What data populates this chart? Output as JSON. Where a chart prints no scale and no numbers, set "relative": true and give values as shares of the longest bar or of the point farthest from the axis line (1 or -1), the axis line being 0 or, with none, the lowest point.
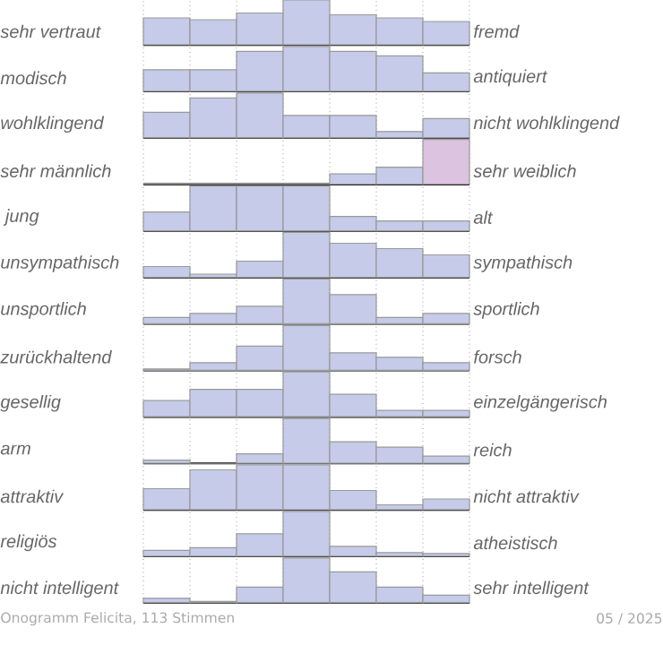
{
  "chart_data": [
    {
      "type": "bar",
      "categories": [
        null,
        null,
        null,
        null,
        null,
        null,
        null
      ],
      "values": [
        0.6,
        0.56,
        0.71,
        1,
        0.67,
        0.6,
        0.52
      ],
      "relative": true,
      "color": "#c5cbe8",
      "grid": "x",
      "ylabel": "sehr vertraut",
      "y2label": "fremd"
    },
    {
      "type": "bar",
      "categories": [
        null,
        null,
        null,
        null,
        null,
        null,
        null
      ],
      "values": [
        0.48,
        0.48,
        0.89,
        1,
        0.89,
        0.79,
        0.41
      ],
      "relative": true,
      "color": "#c5cbe8",
      "grid": "x",
      "ylabel": "modisch",
      "y2label": "antiquiert"
    },
    {
      "type": "bar",
      "categories": [
        null,
        null,
        null,
        null,
        null,
        null,
        null
      ],
      "values": [
        0.57,
        0.89,
        1,
        0.5,
        0.5,
        0.14,
        0.43
      ],
      "relative": true,
      "color": "#c5cbe8",
      "grid": "x",
      "ylabel": "wohlklingend",
      "y2label": "nicht wohlklingend"
    },
    {
      "type": "bar",
      "categories": [
        null,
        null,
        null,
        null,
        null,
        null,
        null
      ],
      "values": [
        0,
        0,
        0,
        0,
        0.23,
        0.38,
        1
      ],
      "relative": true,
      "colors": [
        "#c5cbe8",
        "#c5cbe8",
        "#c5cbe8",
        "#c5cbe8",
        "#c5cbe8",
        "#c5cbe8",
        "#dcc3e0"
      ],
      "grid": "x",
      "ylabel": "sehr männlich",
      "y2label": "sehr weiblich"
    },
    {
      "type": "bar",
      "categories": [
        null,
        null,
        null,
        null,
        null,
        null,
        null
      ],
      "values": [
        0.42,
        1,
        1,
        1,
        0.32,
        0.22,
        0.22
      ],
      "relative": true,
      "color": "#c5cbe8",
      "grid": "x",
      "ylabel": " jung",
      "y2label": "alt"
    },
    {
      "type": "bar",
      "categories": [
        null,
        null,
        null,
        null,
        null,
        null,
        null
      ],
      "values": [
        0.24,
        0.07,
        0.36,
        1,
        0.76,
        0.64,
        0.5
      ],
      "relative": true,
      "color": "#c5cbe8",
      "grid": "x",
      "ylabel": "unsympathisch",
      "y2label": "sympathisch"
    },
    {
      "type": "bar",
      "categories": [
        null,
        null,
        null,
        null,
        null,
        null,
        null
      ],
      "values": [
        0.14,
        0.23,
        0.39,
        1,
        0.65,
        0.14,
        0.23
      ],
      "relative": true,
      "color": "#c5cbe8",
      "grid": "x",
      "ylabel": "unsportlich",
      "y2label": "sportlich"
    },
    {
      "type": "bar",
      "categories": [
        null,
        null,
        null,
        null,
        null,
        null,
        null
      ],
      "values": [
        0.03,
        0.17,
        0.54,
        1,
        0.39,
        0.29,
        0.17
      ],
      "relative": true,
      "color": "#c5cbe8",
      "grid": "x",
      "ylabel": "zurückhaltend",
      "y2label": "forsch"
    },
    {
      "type": "bar",
      "categories": [
        null,
        null,
        null,
        null,
        null,
        null,
        null
      ],
      "values": [
        0.36,
        0.61,
        0.61,
        1,
        0.5,
        0.14,
        0.14
      ],
      "relative": true,
      "color": "#c5cbe8",
      "grid": "x",
      "ylabel": "gesellig",
      "y2label": "einzelgängerisch"
    },
    {
      "type": "bar",
      "categories": [
        null,
        null,
        null,
        null,
        null,
        null,
        null
      ],
      "values": [
        0.07,
        0,
        0.21,
        1,
        0.48,
        0.36,
        0.16
      ],
      "relative": true,
      "color": "#c5cbe8",
      "grid": "x",
      "ylabel": "arm",
      "y2label": "reich"
    },
    {
      "type": "bar",
      "categories": [
        null,
        null,
        null,
        null,
        null,
        null,
        null
      ],
      "values": [
        0.47,
        0.89,
        1,
        1,
        0.43,
        0.11,
        0.24
      ],
      "relative": true,
      "color": "#c5cbe8",
      "grid": "x",
      "ylabel": "attraktiv",
      "y2label": "nicht attraktiv"
    },
    {
      "type": "bar",
      "categories": [
        null,
        null,
        null,
        null,
        null,
        null,
        null
      ],
      "values": [
        0.13,
        0.19,
        0.5,
        1,
        0.22,
        0.08,
        0.06
      ],
      "relative": true,
      "color": "#c5cbe8",
      "grid": "x",
      "ylabel": "religiös",
      "y2label": "atheistisch"
    },
    {
      "type": "bar",
      "categories": [
        null,
        null,
        null,
        null,
        null,
        null,
        null
      ],
      "values": [
        0.1,
        0.03,
        0.35,
        1,
        0.69,
        0.35,
        0.17
      ],
      "relative": true,
      "color": "#c5cbe8",
      "grid": "x",
      "ylabel": "nicht intelligent",
      "y2label": "sehr intelligent",
      "annotations": [
        "Onogramm Felicita, 113 Stimmen",
        "05 / 2025"
      ]
    }
  ]
}
